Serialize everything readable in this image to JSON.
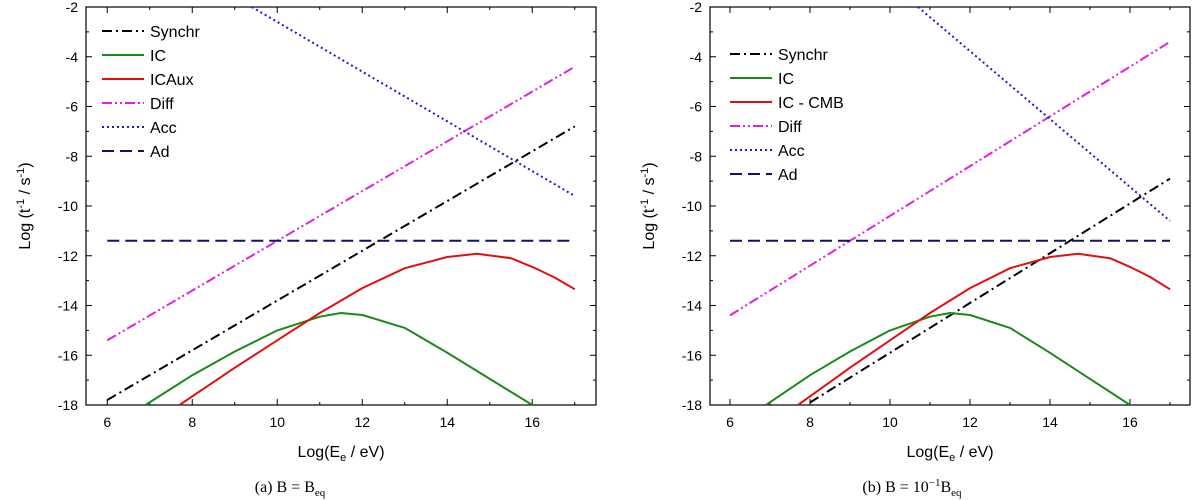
{
  "chart_data": [
    {
      "type": "line",
      "caption": "(a)  B = B",
      "caption_sub": "eq",
      "x_range": [
        5.5,
        17.5
      ],
      "y_range": [
        -18,
        -2
      ],
      "x_ticks": [
        6,
        8,
        10,
        12,
        14,
        16
      ],
      "y_ticks": [
        -18,
        -16,
        -14,
        -12,
        -10,
        -8,
        -6,
        -4,
        -2
      ],
      "xlabel": "Log(E / eV)",
      "xlabel_parts": {
        "pre": "Log(E",
        "sub": "e",
        "post": " / eV)"
      },
      "ylabel_parts": {
        "pre": "Log (t",
        "sup1": "-1",
        "mid": " / s",
        "sup2": "-1",
        "post": ")"
      },
      "legend_position": "top-left",
      "series": [
        {
          "name": "Synchr",
          "color": "#000000",
          "dash": "dashdot",
          "x": [
            6.0,
            17.0
          ],
          "y": [
            -17.8,
            -6.8
          ]
        },
        {
          "name": "IC",
          "color": "#1a8a1a",
          "dash": "solid",
          "x": [
            6.9,
            8,
            9,
            10,
            11,
            11.5,
            12,
            13,
            14,
            15,
            16.0
          ],
          "y": [
            -18.0,
            -16.8,
            -15.85,
            -15.0,
            -14.45,
            -14.3,
            -14.38,
            -14.9,
            -15.9,
            -16.95,
            -18.0
          ]
        },
        {
          "name": "ICAux",
          "color": "#e01010",
          "dash": "solid",
          "x": [
            7.7,
            9,
            10,
            11,
            12,
            13,
            14,
            14.7,
            15.5,
            16,
            16.5,
            17
          ],
          "y": [
            -18.0,
            -16.5,
            -15.4,
            -14.3,
            -13.3,
            -12.5,
            -12.05,
            -11.92,
            -12.1,
            -12.45,
            -12.85,
            -13.35
          ]
        },
        {
          "name": "Diff",
          "color": "#e020e0",
          "dash": "dashdotdot",
          "x": [
            6.0,
            17.0
          ],
          "y": [
            -15.4,
            -4.4
          ]
        },
        {
          "name": "Acc",
          "color": "#1a1ad0",
          "dash": "dotted",
          "x": [
            9.4,
            17.0
          ],
          "y": [
            -2.0,
            -9.6
          ]
        },
        {
          "name": "Ad",
          "color": "#101070",
          "dash": "dashed",
          "x": [
            6.0,
            17.0
          ],
          "y": [
            -11.4,
            -11.4
          ]
        }
      ]
    },
    {
      "type": "line",
      "caption": "(b)  B = 10",
      "caption_sup": "−1",
      "caption_post": "B",
      "caption_sub": "eq",
      "x_range": [
        5.5,
        17.5
      ],
      "y_range": [
        -18,
        -2
      ],
      "x_ticks": [
        6,
        8,
        10,
        12,
        14,
        16
      ],
      "y_ticks": [
        -18,
        -16,
        -14,
        -12,
        -10,
        -8,
        -6,
        -4,
        -2
      ],
      "xlabel": "Log(E / eV)",
      "xlabel_parts": {
        "pre": "Log(E",
        "sub": "e",
        "post": " / eV)"
      },
      "ylabel_parts": {
        "pre": "Log (t",
        "sup1": "-1",
        "mid": " / s",
        "sup2": "-1",
        "post": ")"
      },
      "legend_position": "top-left",
      "series": [
        {
          "name": "Synchr",
          "color": "#000000",
          "dash": "dashdot",
          "x": [
            8.0,
            17.0
          ],
          "y": [
            -17.9,
            -8.9
          ]
        },
        {
          "name": "IC",
          "color": "#1a8a1a",
          "dash": "solid",
          "x": [
            6.9,
            8,
            9,
            10,
            11,
            11.5,
            12,
            13,
            14,
            15,
            16.0
          ],
          "y": [
            -18.0,
            -16.8,
            -15.85,
            -15.0,
            -14.45,
            -14.3,
            -14.38,
            -14.9,
            -15.9,
            -16.95,
            -18.0
          ]
        },
        {
          "name": "IC - CMB",
          "color": "#e01010",
          "dash": "solid",
          "x": [
            7.7,
            9,
            10,
            11,
            12,
            13,
            14,
            14.7,
            15.5,
            16,
            16.5,
            17
          ],
          "y": [
            -18.0,
            -16.5,
            -15.4,
            -14.3,
            -13.3,
            -12.5,
            -12.05,
            -11.92,
            -12.1,
            -12.45,
            -12.85,
            -13.35
          ]
        },
        {
          "name": "Diff",
          "color": "#e020e0",
          "dash": "dashdotdot",
          "x": [
            6.0,
            17.0
          ],
          "y": [
            -14.4,
            -3.4
          ]
        },
        {
          "name": "Acc",
          "color": "#1a1ad0",
          "dash": "dotted",
          "x": [
            10.7,
            17.0
          ],
          "y": [
            -2.0,
            -10.6
          ]
        },
        {
          "name": "Ad",
          "color": "#101070",
          "dash": "dashed",
          "x": [
            6.0,
            17.0
          ],
          "y": [
            -11.4,
            -11.4
          ]
        }
      ]
    }
  ]
}
